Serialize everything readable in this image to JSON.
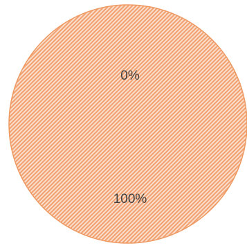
{
  "chart_data": {
    "type": "pie",
    "slices": [
      {
        "label": "0%",
        "value": 0,
        "color": "#f0a06c"
      },
      {
        "label": "100%",
        "value": 100,
        "color": "#f0a06c"
      }
    ],
    "fill_pattern": "diagonal-hatch",
    "hatch_colors": [
      "#f2a272",
      "#fbe3d3"
    ],
    "edge_color": "#ee9961"
  }
}
